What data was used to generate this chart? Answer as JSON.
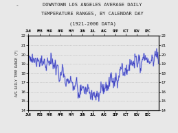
{
  "title_line1": "DOWNTOWN LOS ANGELES AVERAGE DAILY",
  "title_line2": "TEMPERATURE RANGES, BY CALENDAR DAY",
  "title_line3": "(1921-2006 DATA)",
  "ylabel": "AVG DAILY TEMP RANGE (F)",
  "ylim": [
    14,
    22
  ],
  "yticks": [
    14,
    15,
    16,
    17,
    18,
    19,
    20,
    21,
    22
  ],
  "month_labels": [
    "JAN",
    "FEB",
    "MAR",
    "APR",
    "MAY",
    "JUN",
    "JUL",
    "AUG",
    "SEP",
    "OCT",
    "NOV",
    "DEC"
  ],
  "month_days": [
    0,
    31,
    59,
    90,
    120,
    151,
    181,
    212,
    243,
    273,
    304,
    334
  ],
  "line_color_light": "#a0a8e8",
  "line_color_dark": "#2020b0",
  "bg_color": "#e8e8e8",
  "grid_color": "#aaaaaa",
  "title_color": "#222222",
  "figsize": [
    2.59,
    1.94
  ],
  "dpi": 100
}
